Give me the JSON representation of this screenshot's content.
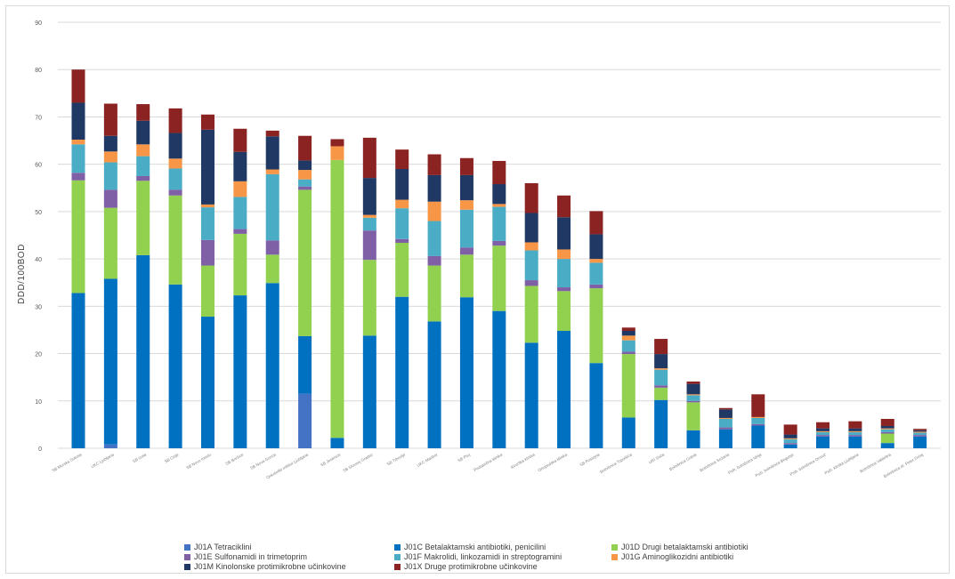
{
  "chart_data": {
    "type": "bar",
    "stacked": true,
    "ylabel": "DDD/100BOD",
    "ylim": [
      0,
      90
    ],
    "yticks": [
      0,
      10,
      20,
      30,
      40,
      50,
      60,
      70,
      80,
      90
    ],
    "grid": true,
    "legend_position": "bottom",
    "categories": [
      "SB Murska Sobota",
      "UKC Ljubljana",
      "SB Izola",
      "SB Celje",
      "SB Novo mesto",
      "SB Brežice",
      "SB Nova Gorica",
      "Onkološki inštitut Ljubljana",
      "SB Jesenice",
      "SB Slovenj Gradec",
      "SB Trbovlje",
      "UKC Maribor",
      "SB Ptuj",
      "Pediatrična klinika",
      "Kirurška klinika",
      "Ortopedska klinika",
      "SB Postojna",
      "Bolnišnica Topolšica",
      "URI Soča",
      "Bolnišnica Golnik",
      "Bolnišnica Sežana",
      "Psih. bolnišnica Idrija",
      "Psih. bolnišnica Begunje",
      "Psih. bolnišnica Ormož",
      "Psih. klinika Ljubljana",
      "Bolnišnica Valdoltra",
      "Bolnišnica dr. Peter Držaj"
    ],
    "series": [
      {
        "name": "J01A Tetraciklini",
        "color": "#4472c4",
        "values": [
          0,
          0.8,
          0,
          0,
          0,
          0,
          0,
          11.5,
          0,
          0,
          0,
          0,
          0,
          0,
          0,
          0,
          0,
          0,
          0,
          0,
          0,
          0,
          0,
          0,
          0,
          0,
          0
        ]
      },
      {
        "name": "J01C Betalaktamski antibiotiki, penicilini",
        "color": "#0070c0",
        "values": [
          32.8,
          35,
          40.8,
          34.6,
          27.8,
          32.3,
          34.9,
          12.2,
          2.2,
          23.8,
          32,
          26.8,
          31.9,
          29,
          22.3,
          24.8,
          18,
          6.5,
          10.2,
          3.8,
          4,
          4.8,
          0.8,
          2.5,
          2.5,
          1.1,
          2.5
        ]
      },
      {
        "name": "J01D Drugi betalaktamski antibiotiki",
        "color": "#92d050",
        "values": [
          23.8,
          15,
          15.7,
          18.8,
          10.8,
          13,
          6,
          30.9,
          58.7,
          16,
          11.4,
          11.8,
          9,
          13.8,
          12,
          8.4,
          15.8,
          13.4,
          2.6,
          5.9,
          0,
          0,
          0,
          0,
          0,
          2,
          0
        ]
      },
      {
        "name": "J01E Sulfonamidi in trimetoprim",
        "color": "#7f5fa5",
        "values": [
          1.6,
          3.8,
          1,
          1.2,
          5.4,
          1,
          3,
          0.7,
          0,
          6.2,
          0.8,
          2,
          1.5,
          1,
          1.2,
          0.8,
          0.8,
          0.5,
          0.5,
          0.3,
          0.4,
          0.3,
          0.3,
          0.3,
          0.3,
          0.3,
          0.3
        ]
      },
      {
        "name": "J01F Makrolidi, linkozamidi in streptogramini",
        "color": "#4bacc6",
        "values": [
          6,
          5.8,
          4.2,
          4.5,
          6.9,
          6.8,
          14,
          1.5,
          0,
          2.7,
          6.5,
          7.4,
          8,
          7.2,
          6.3,
          6,
          4.6,
          2.4,
          3.3,
          1.2,
          1.8,
          1.3,
          0.8,
          0.6,
          0.6,
          0.6,
          0.5
        ]
      },
      {
        "name": "J01G Aminoglikozidni antibiotiki",
        "color": "#f79646",
        "values": [
          1,
          2.3,
          2.5,
          2.1,
          0.6,
          3.3,
          1,
          2,
          2.9,
          0.6,
          1.8,
          4.1,
          2,
          0.6,
          1.7,
          2,
          0.8,
          1,
          0.3,
          0.2,
          0.2,
          0.2,
          0.2,
          0.2,
          0.2,
          0.2,
          0.2
        ]
      },
      {
        "name": "J01M Kinolonske protimikrobne učinkovine",
        "color": "#1f3864",
        "values": [
          7.8,
          3.3,
          5,
          5.4,
          15.8,
          6.2,
          7,
          2,
          0,
          7.8,
          6.5,
          5.6,
          5.3,
          4.2,
          6.2,
          6.8,
          5.2,
          1,
          3,
          2.2,
          1.8,
          0,
          0.8,
          0.6,
          0.6,
          0.5,
          0.3
        ]
      },
      {
        "name": "J01X Druge protimikrobne učinkovine",
        "color": "#8b2323",
        "values": [
          7,
          6.8,
          3.5,
          5.2,
          3.2,
          4.9,
          1.2,
          5.2,
          1.5,
          8.5,
          4.1,
          4.4,
          3.6,
          4.9,
          6.3,
          4.6,
          4.9,
          0.7,
          3.2,
          0.5,
          0.3,
          4.8,
          2.1,
          1.3,
          1.5,
          1.5,
          0.3
        ]
      }
    ]
  }
}
